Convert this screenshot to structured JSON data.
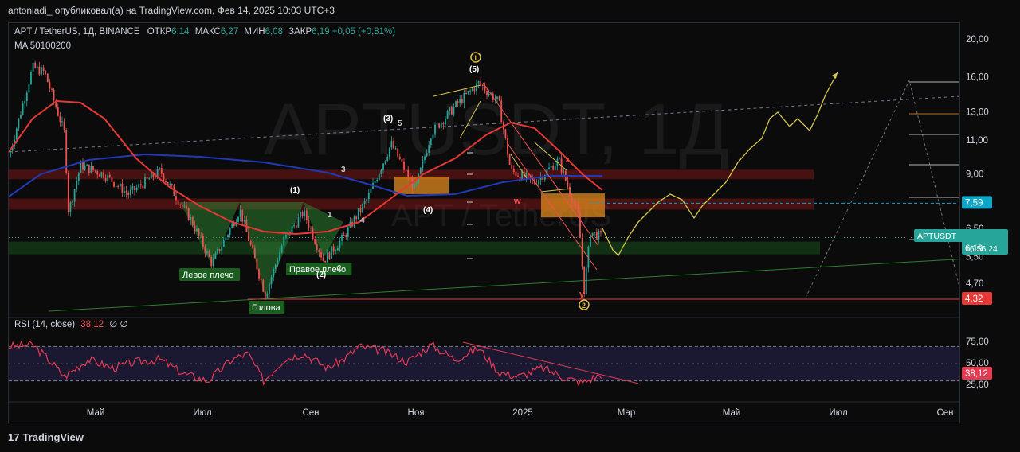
{
  "header": {
    "published_by": "antoniadi_ опубликовал(а) на TradingView.com, Фев 14, 2025 10:03 UTC+3"
  },
  "legend": {
    "symbol": "APT / TetherUS, 1Д, BINANCE",
    "open_label": "ОТКР",
    "open": "6,14",
    "high_label": "МАКС",
    "high": "6,27",
    "low_label": "МИН",
    "low": "6,08",
    "close_label": "ЗАКР",
    "close": "6,19",
    "change": "+0,05 (+0,81%)",
    "ma": "MA 50100200"
  },
  "watermark": {
    "big": "APTUSDT, 1Д",
    "small": "APT / TetherUS"
  },
  "rsi": {
    "label": "RSI (14, close)",
    "value": "38,12",
    "extra": "∅ ∅"
  },
  "footer": {
    "brand": "TradingView"
  },
  "colors": {
    "background": "#0b0b0b",
    "ma50": "#e53935",
    "ma200": "#2139b5",
    "bull": "#26a69a",
    "bear": "#ef5350",
    "forecast": "#d4c64a",
    "rsi_line": "#e53950",
    "rsi_band": "#1e1b3a"
  },
  "chart_data": [
    {
      "type": "line",
      "name": "price",
      "yscale": "log",
      "ylim": [
        3.9,
        21
      ],
      "x_ticks": [
        "Май",
        "Июл",
        "Сен",
        "Ноя",
        "2025",
        "Мар",
        "Май",
        "Июл",
        "Сен"
      ],
      "y_ticks": [
        "20,00",
        "16,00",
        "13,00",
        "11,00",
        "9,00",
        "6,50",
        "5,50",
        "4,70"
      ],
      "price_labels": [
        {
          "text": "7,59",
          "value": 7.59,
          "color": "#0ea5c6"
        },
        {
          "text": "APTUSDT",
          "value": 6.19,
          "color": "#26a69a"
        },
        {
          "text": "6,19",
          "value": 6.19,
          "color": "#26a69a"
        },
        {
          "text": "16:56:24",
          "value": 6.19,
          "color": "#26a69a"
        },
        {
          "text": "4,32",
          "value": 4.32,
          "color": "#e53935"
        }
      ],
      "annotations": [
        {
          "text": "Левое плечо",
          "kind": "box-label"
        },
        {
          "text": "Голова",
          "kind": "box-label"
        },
        {
          "text": "Правое плечо",
          "kind": "box-label"
        },
        {
          "text": "(1)",
          "kind": "wave"
        },
        {
          "text": "(2)",
          "kind": "wave"
        },
        {
          "text": "(3)",
          "kind": "wave"
        },
        {
          "text": "(4)",
          "kind": "wave"
        },
        {
          "text": "(5)",
          "kind": "wave"
        },
        {
          "text": "1",
          "kind": "wave-circle"
        },
        {
          "text": "2",
          "kind": "wave-circle"
        },
        {
          "text": "1",
          "kind": "subwave"
        },
        {
          "text": "2",
          "kind": "subwave"
        },
        {
          "text": "3",
          "kind": "subwave"
        },
        {
          "text": "4",
          "kind": "subwave"
        },
        {
          "text": "5",
          "kind": "subwave"
        },
        {
          "text": "w",
          "kind": "subwave"
        },
        {
          "text": "x",
          "kind": "subwave"
        },
        {
          "text": "y",
          "kind": "subwave"
        }
      ]
    },
    {
      "type": "line",
      "name": "RSI (14, close)",
      "ylim": [
        15,
        85
      ],
      "y_ticks": [
        "75,00",
        "50,00",
        "25,00"
      ],
      "last": "38,12"
    }
  ]
}
